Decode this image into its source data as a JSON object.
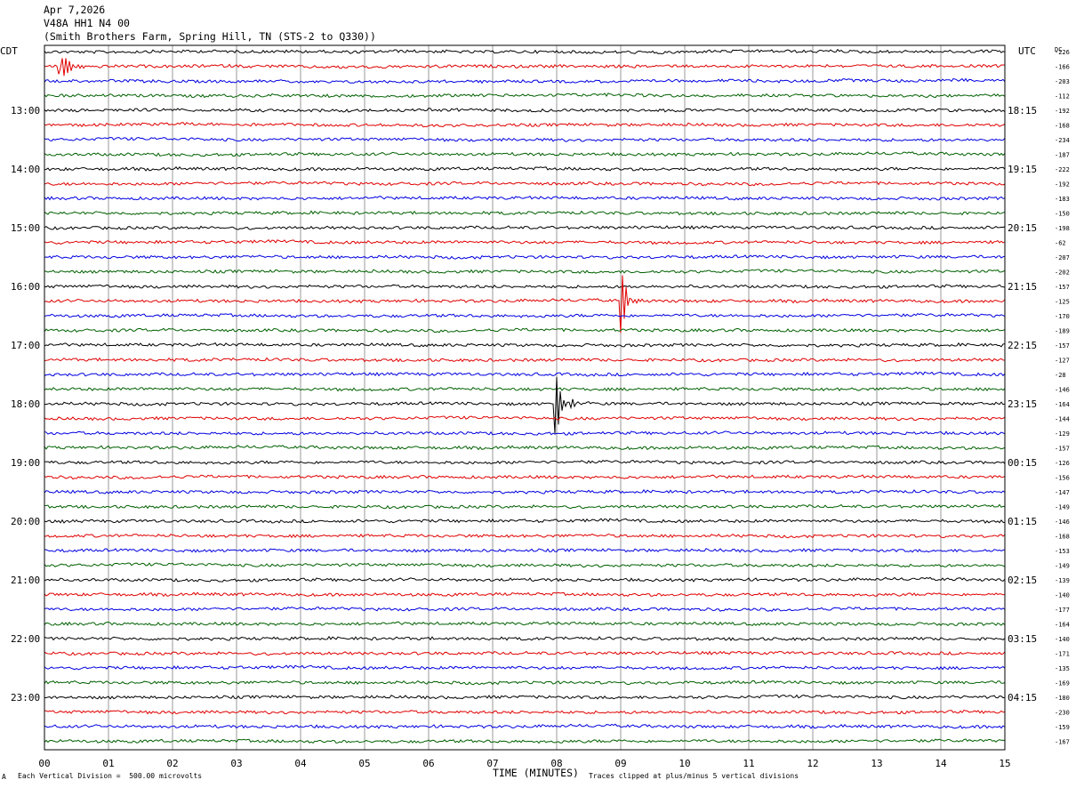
{
  "header": {
    "date": "Apr 7,2026",
    "station": "V48A HH1 N4 00",
    "location": "(Smith Brothers Farm, Spring Hill, TN (STS-2 to Q330))"
  },
  "left_tz": "CDT",
  "right_tz": "UTC",
  "dc_label": "DC",
  "footer": {
    "scale": "Each Vertical Division =  500.00 microvolts",
    "clip": "Traces clipped at plus/minus 5 vertical divisions",
    "mark": "A"
  },
  "colors": {
    "cycle": [
      "#000000",
      "#e00000",
      "#0000e0",
      "#006000"
    ],
    "grid": "#9a9a9a"
  },
  "chart_data": {
    "type": "line",
    "xlabel": "TIME (MINUTES)",
    "x_ticks": [
      "00",
      "01",
      "02",
      "03",
      "04",
      "05",
      "06",
      "07",
      "08",
      "09",
      "10",
      "11",
      "12",
      "13",
      "14",
      "15"
    ],
    "xlim": [
      0,
      15
    ],
    "left_hour_labels": [
      "13:00",
      "14:00",
      "15:00",
      "16:00",
      "17:00",
      "18:00",
      "19:00",
      "20:00",
      "21:00",
      "22:00",
      "23:00"
    ],
    "right_hour_labels": [
      "18:15",
      "19:15",
      "20:15",
      "21:15",
      "22:15",
      "23:15",
      "00:15",
      "01:15",
      "02:15",
      "03:15",
      "04:15"
    ],
    "dc_offsets": [
      -226,
      -166,
      -203,
      -112,
      -192,
      -168,
      -234,
      -187,
      -222,
      -192,
      -183,
      -150,
      -198,
      -62,
      -207,
      -202,
      -157,
      -125,
      -170,
      -189,
      -157,
      -127,
      -28,
      -146,
      -164,
      -144,
      -129,
      -157,
      -126,
      -156,
      -147,
      -149,
      -146,
      -168,
      -153,
      -149,
      -139,
      -140,
      -177,
      -164,
      -140,
      -171,
      -135,
      -169,
      -180,
      -230,
      -159,
      -167
    ],
    "events": [
      {
        "trace": 1,
        "minute": 0.22,
        "color_index": 2,
        "label": ""
      },
      {
        "trace": 17,
        "minute": 8.98,
        "color_index": 1,
        "label": ""
      },
      {
        "trace": 24,
        "minute": 7.95,
        "color_index": 0,
        "label": ""
      }
    ]
  }
}
